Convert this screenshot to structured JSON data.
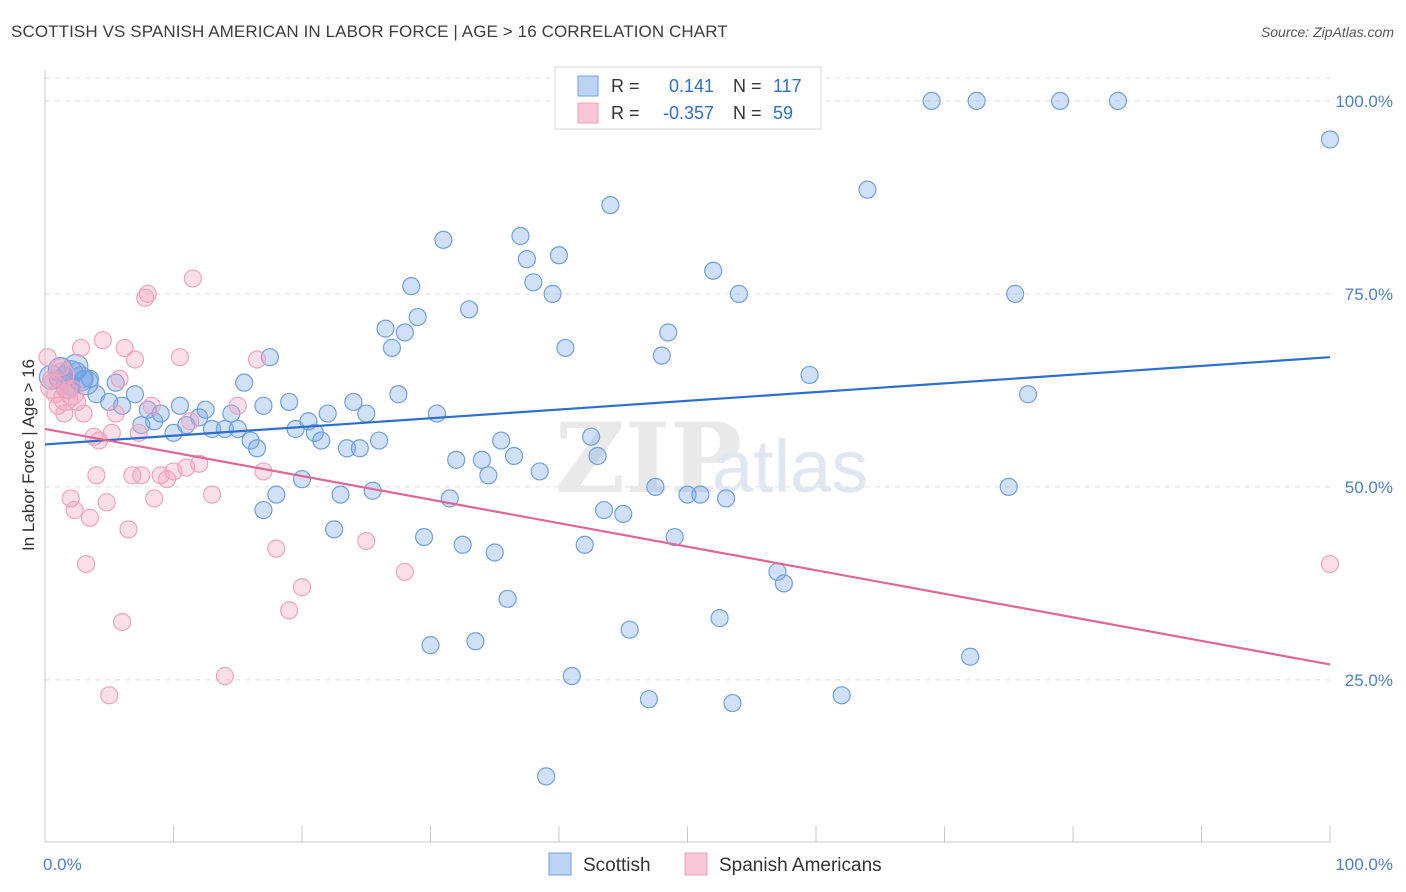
{
  "title": "SCOTTISH VS SPANISH AMERICAN IN LABOR FORCE | AGE > 16 CORRELATION CHART",
  "source": "Source: ZipAtlas.com",
  "watermark": {
    "zip": "ZIP",
    "atlas": "atlas"
  },
  "chart_data": {
    "type": "scatter",
    "xlabel": "",
    "ylabel": "In Labor Force | Age > 16",
    "xlim": [
      0,
      100
    ],
    "ylim": [
      4,
      104
    ],
    "x_tick_labels": [
      "0.0%",
      "100.0%"
    ],
    "y_ticks": [
      25,
      50,
      75,
      100
    ],
    "y_tick_labels": [
      "25.0%",
      "50.0%",
      "75.0%",
      "100.0%"
    ],
    "grid": true,
    "legend_position": "bottom",
    "series": [
      {
        "name": "Scottish",
        "color": "#6fa0e0",
        "line_color": "#2c6fcc",
        "r_label": "R =",
        "r_value": "0.141",
        "n_label": "N =",
        "n_value": "117",
        "trend": [
          [
            0,
            55.5
          ],
          [
            100,
            66.8
          ]
        ],
        "points": [
          [
            1,
            64
          ],
          [
            1.5,
            64.5
          ],
          [
            2,
            63
          ],
          [
            2.5,
            65
          ],
          [
            3,
            64
          ],
          [
            3.5,
            64
          ],
          [
            4,
            62
          ],
          [
            5,
            61
          ],
          [
            5.5,
            63.5
          ],
          [
            6,
            60.5
          ],
          [
            7,
            62
          ],
          [
            7.5,
            58
          ],
          [
            8,
            60
          ],
          [
            8.5,
            58.5
          ],
          [
            9,
            59.5
          ],
          [
            10,
            57
          ],
          [
            10.5,
            60.5
          ],
          [
            11,
            58
          ],
          [
            12,
            59
          ],
          [
            12.5,
            60
          ],
          [
            13,
            57.5
          ],
          [
            14,
            57.5
          ],
          [
            14.5,
            59.5
          ],
          [
            15,
            57.5
          ],
          [
            15.5,
            63.5
          ],
          [
            16,
            56
          ],
          [
            16.5,
            55
          ],
          [
            17,
            47
          ],
          [
            17,
            60.5
          ],
          [
            17.5,
            66.8
          ],
          [
            18,
            49
          ],
          [
            19,
            61
          ],
          [
            19.5,
            57.5
          ],
          [
            20,
            51
          ],
          [
            20.5,
            58.5
          ],
          [
            21,
            57
          ],
          [
            21.5,
            56
          ],
          [
            22,
            59.5
          ],
          [
            22.5,
            44.5
          ],
          [
            23,
            49
          ],
          [
            23.5,
            55
          ],
          [
            24,
            61
          ],
          [
            24.5,
            55
          ],
          [
            25,
            59.5
          ],
          [
            25.5,
            49.5
          ],
          [
            26,
            56
          ],
          [
            26.5,
            70.5
          ],
          [
            27,
            68
          ],
          [
            27.5,
            62
          ],
          [
            28,
            70
          ],
          [
            28.5,
            76
          ],
          [
            29,
            72
          ],
          [
            29.5,
            43.5
          ],
          [
            30,
            29.5
          ],
          [
            30.5,
            59.5
          ],
          [
            31,
            82
          ],
          [
            31.5,
            48.5
          ],
          [
            32,
            53.5
          ],
          [
            32.5,
            42.5
          ],
          [
            33,
            73
          ],
          [
            33.5,
            30
          ],
          [
            34,
            53.5
          ],
          [
            34.5,
            51.5
          ],
          [
            35,
            41.5
          ],
          [
            35.5,
            56
          ],
          [
            36,
            35.5
          ],
          [
            36.5,
            54
          ],
          [
            37,
            82.5
          ],
          [
            37.5,
            79.5
          ],
          [
            38,
            76.5
          ],
          [
            38.5,
            52
          ],
          [
            39,
            12.5
          ],
          [
            39.5,
            75
          ],
          [
            40,
            80
          ],
          [
            40.5,
            68
          ],
          [
            41,
            25.5
          ],
          [
            42,
            42.5
          ],
          [
            42.5,
            56.5
          ],
          [
            43,
            54
          ],
          [
            43.5,
            47
          ],
          [
            44,
            86.5
          ],
          [
            45,
            46.5
          ],
          [
            45.5,
            31.5
          ],
          [
            46,
            100
          ],
          [
            47,
            22.5
          ],
          [
            47.5,
            50
          ],
          [
            48,
            67
          ],
          [
            48.5,
            70
          ],
          [
            49,
            43.5
          ],
          [
            50,
            49
          ],
          [
            51,
            49
          ],
          [
            52,
            78
          ],
          [
            52.5,
            33
          ],
          [
            53,
            48.5
          ],
          [
            53.5,
            22
          ],
          [
            54,
            75
          ],
          [
            57,
            39
          ],
          [
            57.5,
            37.5
          ],
          [
            59,
            100
          ],
          [
            59.5,
            64.5
          ],
          [
            62,
            23
          ],
          [
            64,
            88.5
          ],
          [
            69,
            100
          ],
          [
            72,
            28
          ],
          [
            72.5,
            100
          ],
          [
            75,
            50
          ],
          [
            75.5,
            75
          ],
          [
            76.5,
            62
          ],
          [
            79,
            100
          ],
          [
            83.5,
            100
          ],
          [
            100,
            95
          ]
        ],
        "cluster": [
          [
            0.5,
            64.2
          ],
          [
            1.2,
            65.2
          ],
          [
            2,
            64.8
          ],
          [
            2.8,
            64
          ],
          [
            3.2,
            63.5
          ],
          [
            1.8,
            63
          ],
          [
            2.4,
            65.6
          ]
        ]
      },
      {
        "name": "Spanish Americans",
        "color": "#f2a2bd",
        "line_color": "#e06793",
        "r_label": "R =",
        "r_value": "-0.357",
        "n_label": "N =",
        "n_value": "59",
        "trend": [
          [
            0,
            57.5
          ],
          [
            100,
            27
          ]
        ],
        "points": [
          [
            0.2,
            66.8
          ],
          [
            0.5,
            64
          ],
          [
            0.8,
            62
          ],
          [
            1,
            60.5
          ],
          [
            1.2,
            65.5
          ],
          [
            1.5,
            59.5
          ],
          [
            1.8,
            62.5
          ],
          [
            2,
            48.5
          ],
          [
            2.3,
            47
          ],
          [
            2.5,
            61
          ],
          [
            2.8,
            68
          ],
          [
            3,
            59.5
          ],
          [
            3.2,
            40
          ],
          [
            3.5,
            46
          ],
          [
            3.8,
            56.5
          ],
          [
            4,
            51.5
          ],
          [
            4.2,
            56
          ],
          [
            4.5,
            69
          ],
          [
            4.8,
            48
          ],
          [
            5,
            23
          ],
          [
            5.2,
            57
          ],
          [
            5.5,
            59.5
          ],
          [
            5.8,
            64
          ],
          [
            6,
            32.5
          ],
          [
            6.2,
            68
          ],
          [
            6.5,
            44.5
          ],
          [
            6.8,
            51.5
          ],
          [
            7,
            66.5
          ],
          [
            7.3,
            57
          ],
          [
            7.5,
            51.5
          ],
          [
            7.8,
            74.5
          ],
          [
            8,
            75
          ],
          [
            8.3,
            60.5
          ],
          [
            8.5,
            48.5
          ],
          [
            9,
            51.5
          ],
          [
            9.5,
            51
          ],
          [
            10,
            52
          ],
          [
            10.5,
            66.8
          ],
          [
            11,
            52.5
          ],
          [
            11.3,
            58.5
          ],
          [
            11.5,
            77
          ],
          [
            12,
            53
          ],
          [
            13,
            49
          ],
          [
            14,
            25.5
          ],
          [
            15,
            60.5
          ],
          [
            16.5,
            66.5
          ],
          [
            17,
            52
          ],
          [
            18,
            42
          ],
          [
            19,
            34
          ],
          [
            20,
            37
          ],
          [
            25,
            43
          ],
          [
            28,
            39
          ],
          [
            100,
            40
          ]
        ],
        "cluster": [
          [
            0.6,
            63
          ],
          [
            1.3,
            64.5
          ],
          [
            2.1,
            62.2
          ],
          [
            1.6,
            61.5
          ]
        ]
      }
    ]
  }
}
